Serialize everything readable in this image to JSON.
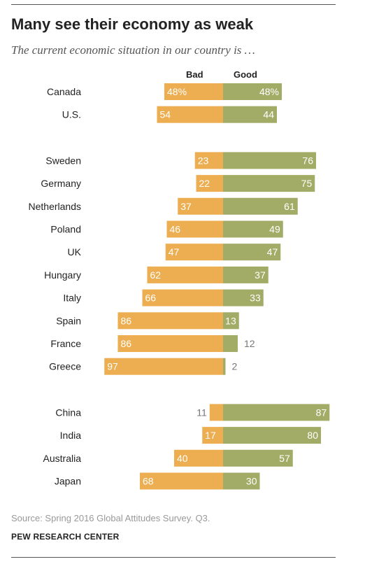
{
  "header": {
    "title": "Many see their economy as weak",
    "subtitle": "The current economic situation in our country is …"
  },
  "legend": {
    "bad_label": "Bad",
    "good_label": "Good"
  },
  "colors": {
    "bad": "#ECAE50",
    "good": "#A3AC67",
    "label_inside": "#ffffff",
    "label_outside": "#777777"
  },
  "chart_data": {
    "type": "bar",
    "orientation": "diverging-horizontal",
    "title": "Many see their economy as weak",
    "subtitle": "The current economic situation in our country is …",
    "categories": [
      "Canada",
      "U.S.",
      "Sweden",
      "Germany",
      "Netherlands",
      "Poland",
      "UK",
      "Hungary",
      "Italy",
      "Spain",
      "France",
      "Greece",
      "China",
      "India",
      "Australia",
      "Japan"
    ],
    "groups": [
      [
        "Canada",
        "U.S."
      ],
      [
        "Sweden",
        "Germany",
        "Netherlands",
        "Poland",
        "UK",
        "Hungary",
        "Italy",
        "Spain",
        "France",
        "Greece"
      ],
      [
        "China",
        "India",
        "Australia",
        "Japan"
      ]
    ],
    "series": [
      {
        "name": "Bad",
        "values": [
          48,
          54,
          23,
          22,
          37,
          46,
          47,
          62,
          66,
          86,
          86,
          97,
          11,
          17,
          40,
          68
        ]
      },
      {
        "name": "Good",
        "values": [
          48,
          44,
          76,
          75,
          61,
          49,
          47,
          37,
          33,
          13,
          12,
          2,
          87,
          80,
          57,
          30
        ]
      }
    ],
    "value_labels": {
      "Bad": [
        "48%",
        "54",
        "23",
        "22",
        "37",
        "46",
        "47",
        "62",
        "66",
        "86",
        "86",
        "97",
        "11",
        "17",
        "40",
        "68"
      ],
      "Good": [
        "48%",
        "44",
        "76",
        "75",
        "61",
        "49",
        "47",
        "37",
        "33",
        "13",
        "12",
        "2",
        "87",
        "80",
        "57",
        "30"
      ]
    },
    "xlim": [
      -100,
      100
    ],
    "legend": "top",
    "grid": false
  },
  "footer": {
    "source": "Source: Spring 2016 Global Attitudes Survey. Q3.",
    "org": "PEW RESEARCH CENTER"
  }
}
